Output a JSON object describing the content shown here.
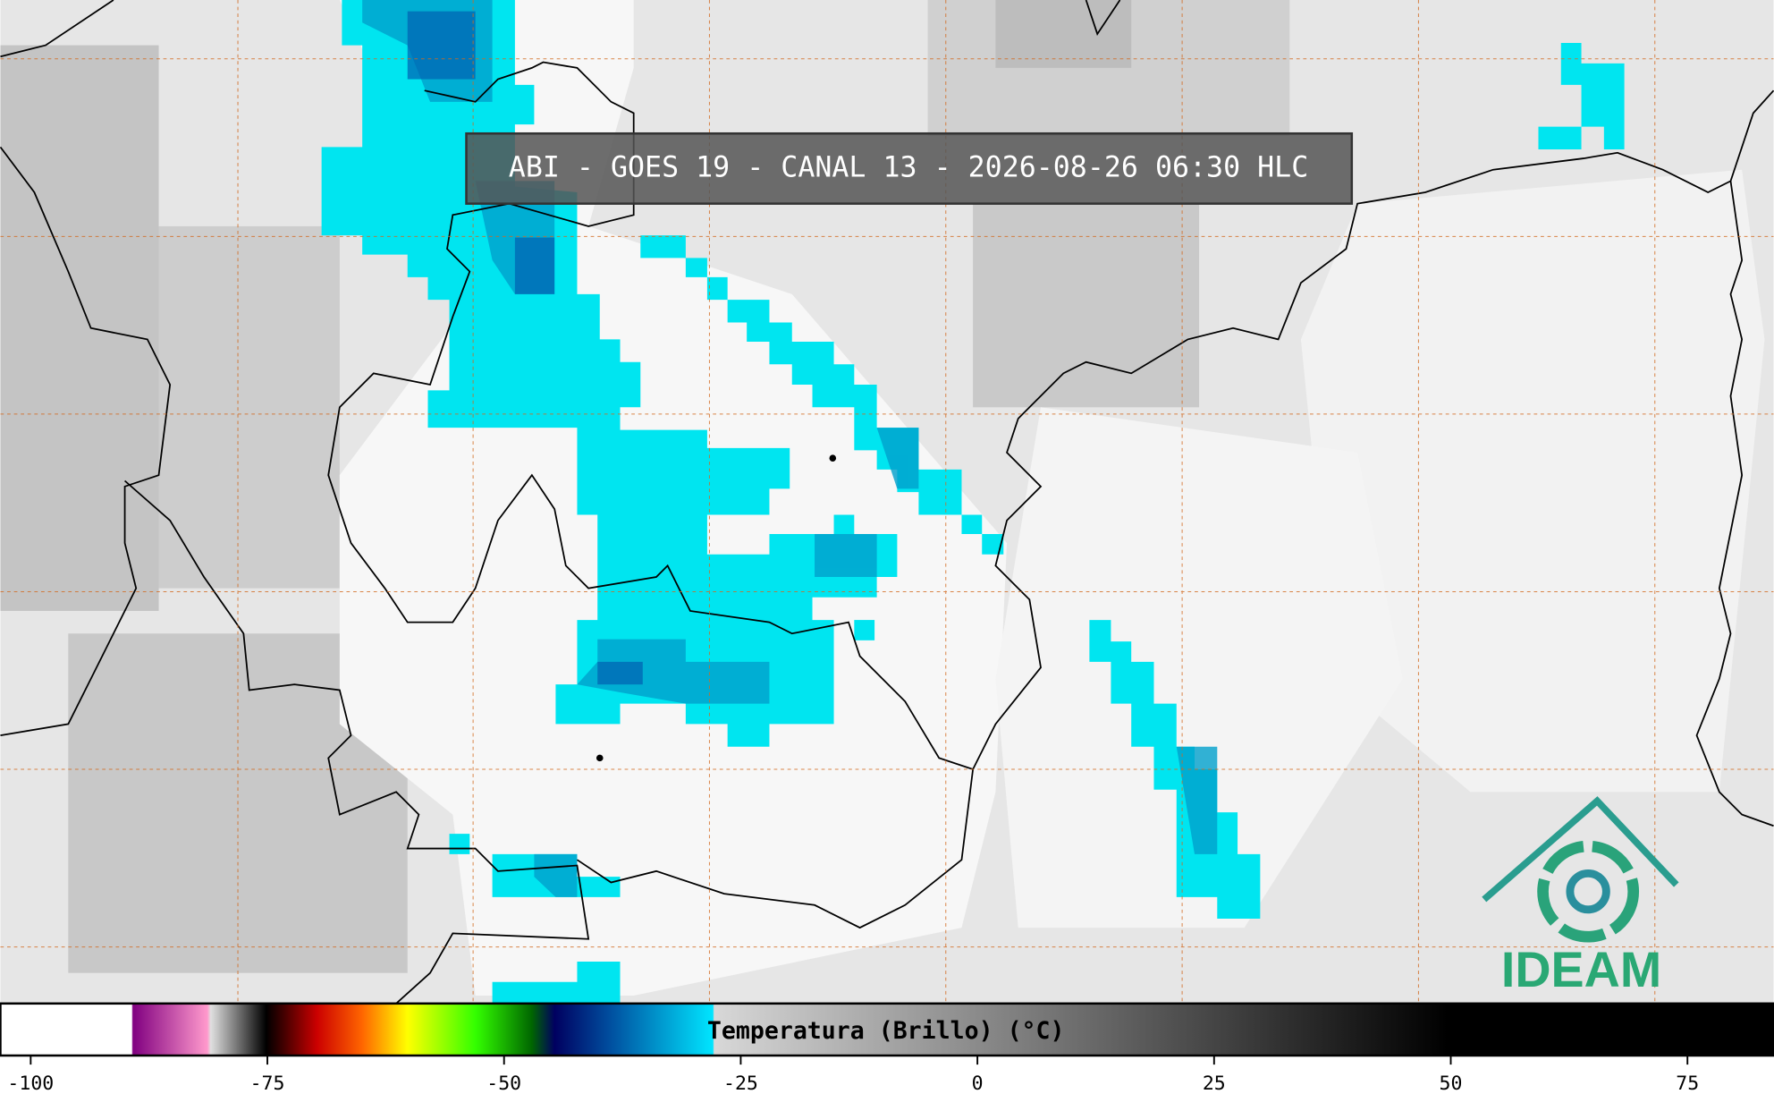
{
  "title": "ABI - GOES 19 - CANAL 13 - 2026-08-26 06:30 HLC",
  "colorbar": {
    "label": "Temperatura (Brillo) (°C)",
    "lim": [
      -103.2,
      84.1
    ],
    "ticks": [
      -100,
      -75,
      -50,
      -25,
      0,
      25,
      50,
      75
    ]
  },
  "logo": "IDEAM"
}
